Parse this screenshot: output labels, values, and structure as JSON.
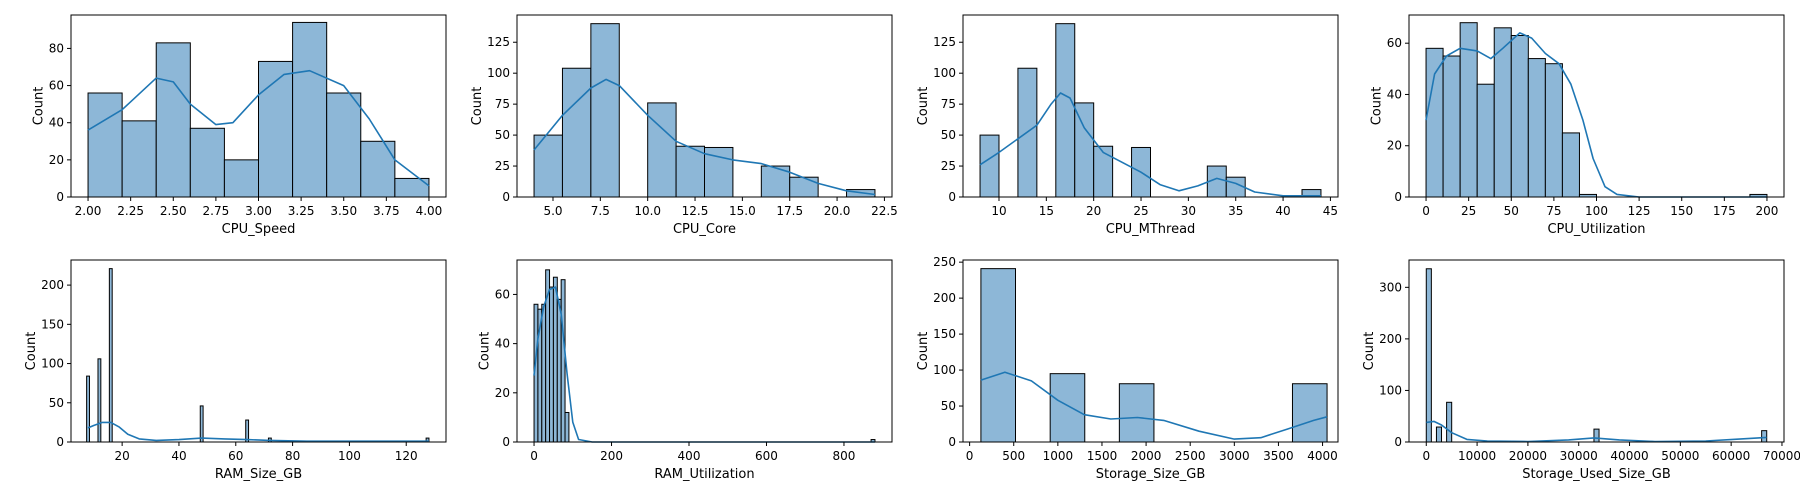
{
  "style": {
    "bar_fill": "#8db7d7",
    "bar_edge": "#000000",
    "kde_color": "#1f77b4"
  },
  "chart_data": [
    {
      "type": "bar",
      "xlabel": "CPU_Speed",
      "ylabel": "Count",
      "xlim": [
        1.9,
        4.1
      ],
      "ylim": [
        0,
        98
      ],
      "xticks": [
        "2.00",
        "2.25",
        "2.50",
        "2.75",
        "3.00",
        "3.25",
        "3.50",
        "3.75",
        "4.00"
      ],
      "yticks": [
        "0",
        "20",
        "40",
        "60",
        "80"
      ],
      "bins": [
        {
          "x0": 2.0,
          "x1": 2.2,
          "count": 56
        },
        {
          "x0": 2.2,
          "x1": 2.4,
          "count": 41
        },
        {
          "x0": 2.4,
          "x1": 2.6,
          "count": 83
        },
        {
          "x0": 2.6,
          "x1": 2.8,
          "count": 37
        },
        {
          "x0": 2.8,
          "x1": 3.0,
          "count": 20
        },
        {
          "x0": 3.0,
          "x1": 3.2,
          "count": 73
        },
        {
          "x0": 3.2,
          "x1": 3.4,
          "count": 94
        },
        {
          "x0": 3.4,
          "x1": 3.6,
          "count": 56
        },
        {
          "x0": 3.6,
          "x1": 3.8,
          "count": 30
        },
        {
          "x0": 3.8,
          "x1": 4.0,
          "count": 10
        }
      ],
      "kde": [
        [
          2.0,
          36
        ],
        [
          2.2,
          47
        ],
        [
          2.4,
          64
        ],
        [
          2.5,
          62
        ],
        [
          2.6,
          50
        ],
        [
          2.75,
          39
        ],
        [
          2.85,
          40
        ],
        [
          3.0,
          55
        ],
        [
          3.15,
          66
        ],
        [
          3.3,
          68
        ],
        [
          3.5,
          60
        ],
        [
          3.65,
          42
        ],
        [
          3.8,
          20
        ],
        [
          4.0,
          6
        ]
      ]
    },
    {
      "type": "bar",
      "xlabel": "CPU_Core",
      "ylabel": "Count",
      "xlim": [
        3.1,
        22.9
      ],
      "ylim": [
        0,
        147
      ],
      "xticks": [
        "5.0",
        "7.5",
        "10.0",
        "12.5",
        "15.0",
        "17.5",
        "20.0",
        "22.5"
      ],
      "yticks": [
        "0",
        "25",
        "50",
        "75",
        "100",
        "125"
      ],
      "bins": [
        {
          "x0": 4.0,
          "x1": 5.5,
          "count": 50
        },
        {
          "x0": 5.5,
          "x1": 7.0,
          "count": 104
        },
        {
          "x0": 7.0,
          "x1": 8.5,
          "count": 140
        },
        {
          "x0": 8.5,
          "x1": 10.0,
          "count": 0
        },
        {
          "x0": 10.0,
          "x1": 11.5,
          "count": 76
        },
        {
          "x0": 11.5,
          "x1": 13.0,
          "count": 41
        },
        {
          "x0": 13.0,
          "x1": 14.5,
          "count": 40
        },
        {
          "x0": 14.5,
          "x1": 16.0,
          "count": 0
        },
        {
          "x0": 16.0,
          "x1": 17.5,
          "count": 25
        },
        {
          "x0": 17.5,
          "x1": 19.0,
          "count": 16
        },
        {
          "x0": 19.0,
          "x1": 20.5,
          "count": 0
        },
        {
          "x0": 20.5,
          "x1": 22.0,
          "count": 6
        }
      ],
      "kde": [
        [
          4.0,
          38
        ],
        [
          5.5,
          66
        ],
        [
          7.0,
          88
        ],
        [
          7.8,
          95
        ],
        [
          8.5,
          90
        ],
        [
          10.0,
          66
        ],
        [
          11.5,
          45
        ],
        [
          13.0,
          35
        ],
        [
          14.5,
          30
        ],
        [
          16.0,
          27
        ],
        [
          17.5,
          20
        ],
        [
          19.0,
          11
        ],
        [
          20.5,
          5
        ],
        [
          22.0,
          2
        ]
      ]
    },
    {
      "type": "bar",
      "xlabel": "CPU_MThread",
      "ylabel": "Count",
      "xlim": [
        6.2,
        45.8
      ],
      "ylim": [
        0,
        147
      ],
      "xticks": [
        "10",
        "15",
        "20",
        "25",
        "30",
        "35",
        "40",
        "45"
      ],
      "yticks": [
        "0",
        "25",
        "50",
        "75",
        "100",
        "125"
      ],
      "bins": [
        {
          "x0": 8,
          "x1": 10,
          "count": 50
        },
        {
          "x0": 10,
          "x1": 12,
          "count": 0
        },
        {
          "x0": 12,
          "x1": 14,
          "count": 104
        },
        {
          "x0": 14,
          "x1": 16,
          "count": 0
        },
        {
          "x0": 16,
          "x1": 18,
          "count": 140
        },
        {
          "x0": 18,
          "x1": 20,
          "count": 76
        },
        {
          "x0": 20,
          "x1": 22,
          "count": 41
        },
        {
          "x0": 22,
          "x1": 24,
          "count": 0
        },
        {
          "x0": 24,
          "x1": 26,
          "count": 40
        },
        {
          "x0": 26,
          "x1": 28,
          "count": 0
        },
        {
          "x0": 28,
          "x1": 30,
          "count": 0
        },
        {
          "x0": 30,
          "x1": 32,
          "count": 0
        },
        {
          "x0": 32,
          "x1": 34,
          "count": 25
        },
        {
          "x0": 34,
          "x1": 36,
          "count": 16
        },
        {
          "x0": 36,
          "x1": 38,
          "count": 0
        },
        {
          "x0": 38,
          "x1": 40,
          "count": 0
        },
        {
          "x0": 40,
          "x1": 42,
          "count": 0
        },
        {
          "x0": 42,
          "x1": 44,
          "count": 6
        }
      ],
      "kde": [
        [
          8,
          26
        ],
        [
          10,
          36
        ],
        [
          12,
          47
        ],
        [
          14,
          58
        ],
        [
          15.5,
          75
        ],
        [
          16.5,
          84
        ],
        [
          17.5,
          80
        ],
        [
          19,
          56
        ],
        [
          21,
          36
        ],
        [
          23,
          28
        ],
        [
          25,
          20
        ],
        [
          27,
          10
        ],
        [
          29,
          5
        ],
        [
          31,
          9
        ],
        [
          33,
          15
        ],
        [
          35,
          11
        ],
        [
          37,
          4
        ],
        [
          40,
          1
        ],
        [
          44,
          1
        ]
      ]
    },
    {
      "type": "bar",
      "xlabel": "CPU_Utilization",
      "ylabel": "Count",
      "xlim": [
        -10,
        210
      ],
      "ylim": [
        0,
        71
      ],
      "xticks": [
        "0",
        "25",
        "50",
        "75",
        "100",
        "125",
        "150",
        "175",
        "200"
      ],
      "yticks": [
        "0",
        "20",
        "40",
        "60"
      ],
      "bins": [
        {
          "x0": 0,
          "x1": 10,
          "count": 58
        },
        {
          "x0": 10,
          "x1": 20,
          "count": 55
        },
        {
          "x0": 20,
          "x1": 30,
          "count": 68
        },
        {
          "x0": 30,
          "x1": 40,
          "count": 44
        },
        {
          "x0": 40,
          "x1": 50,
          "count": 66
        },
        {
          "x0": 50,
          "x1": 60,
          "count": 63
        },
        {
          "x0": 60,
          "x1": 70,
          "count": 54
        },
        {
          "x0": 70,
          "x1": 80,
          "count": 52
        },
        {
          "x0": 80,
          "x1": 90,
          "count": 25
        },
        {
          "x0": 90,
          "x1": 100,
          "count": 1
        },
        {
          "x0": 190,
          "x1": 200,
          "count": 1
        }
      ],
      "kde": [
        [
          0,
          30
        ],
        [
          5,
          48
        ],
        [
          12,
          55
        ],
        [
          20,
          58
        ],
        [
          30,
          57
        ],
        [
          38,
          54
        ],
        [
          45,
          58
        ],
        [
          55,
          64
        ],
        [
          62,
          62
        ],
        [
          70,
          56
        ],
        [
          78,
          52
        ],
        [
          85,
          44
        ],
        [
          92,
          30
        ],
        [
          98,
          15
        ],
        [
          105,
          4
        ],
        [
          112,
          1
        ],
        [
          125,
          0
        ],
        [
          200,
          0
        ]
      ]
    },
    {
      "type": "bar",
      "xlabel": "RAM_Size_GB",
      "ylabel": "Count",
      "xlim": [
        2,
        134
      ],
      "ylim": [
        0,
        232
      ],
      "xticks": [
        "20",
        "40",
        "60",
        "80",
        "100",
        "120"
      ],
      "yticks": [
        "0",
        "50",
        "100",
        "150",
        "200"
      ],
      "bins": [
        {
          "x0": 7.5,
          "x1": 8.5,
          "count": 84
        },
        {
          "x0": 11.5,
          "x1": 12.5,
          "count": 106
        },
        {
          "x0": 15.5,
          "x1": 16.5,
          "count": 221
        },
        {
          "x0": 47.5,
          "x1": 48.5,
          "count": 46
        },
        {
          "x0": 63.5,
          "x1": 64.5,
          "count": 28
        },
        {
          "x0": 71.5,
          "x1": 72.5,
          "count": 5
        },
        {
          "x0": 127.0,
          "x1": 128.0,
          "count": 5
        }
      ],
      "kde": [
        [
          8,
          18
        ],
        [
          10,
          21
        ],
        [
          13,
          25
        ],
        [
          16,
          25
        ],
        [
          19,
          19
        ],
        [
          22,
          10
        ],
        [
          26,
          4
        ],
        [
          32,
          2
        ],
        [
          40,
          3
        ],
        [
          48,
          5
        ],
        [
          56,
          4
        ],
        [
          64,
          3
        ],
        [
          72,
          2
        ],
        [
          85,
          1
        ],
        [
          100,
          1
        ],
        [
          115,
          1
        ],
        [
          128,
          1
        ]
      ]
    },
    {
      "type": "bar",
      "xlabel": "RAM_Utilization",
      "ylabel": "Count",
      "xlim": [
        -44,
        924
      ],
      "ylim": [
        0,
        74
      ],
      "xticks": [
        "0",
        "200",
        "400",
        "600",
        "800"
      ],
      "yticks": [
        "0",
        "20",
        "40",
        "60"
      ],
      "bins": [
        {
          "x0": 0,
          "x1": 10,
          "count": 56
        },
        {
          "x0": 10,
          "x1": 20,
          "count": 54
        },
        {
          "x0": 20,
          "x1": 30,
          "count": 56
        },
        {
          "x0": 30,
          "x1": 40,
          "count": 70
        },
        {
          "x0": 40,
          "x1": 50,
          "count": 63
        },
        {
          "x0": 50,
          "x1": 60,
          "count": 67
        },
        {
          "x0": 60,
          "x1": 70,
          "count": 58
        },
        {
          "x0": 70,
          "x1": 80,
          "count": 66
        },
        {
          "x0": 80,
          "x1": 90,
          "count": 12
        },
        {
          "x0": 870,
          "x1": 880,
          "count": 1
        }
      ],
      "kde": [
        [
          0,
          27
        ],
        [
          10,
          42
        ],
        [
          25,
          55
        ],
        [
          40,
          62
        ],
        [
          55,
          63
        ],
        [
          70,
          52
        ],
        [
          85,
          28
        ],
        [
          100,
          8
        ],
        [
          115,
          1
        ],
        [
          150,
          0
        ],
        [
          880,
          0
        ]
      ]
    },
    {
      "type": "bar",
      "xlabel": "Storage_Size_GB",
      "ylabel": "Count",
      "xlim": [
        -75,
        4175
      ],
      "ylim": [
        0,
        253
      ],
      "xticks": [
        "0",
        "500",
        "1000",
        "1500",
        "2000",
        "2500",
        "3000",
        "3500",
        "4000"
      ],
      "yticks": [
        "0",
        "50",
        "100",
        "150",
        "200",
        "250"
      ],
      "bins": [
        {
          "x0": 128,
          "x1": 520,
          "count": 241
        },
        {
          "x0": 520,
          "x1": 913,
          "count": 0
        },
        {
          "x0": 913,
          "x1": 1305,
          "count": 95
        },
        {
          "x0": 1305,
          "x1": 1697,
          "count": 0
        },
        {
          "x0": 1697,
          "x1": 2089,
          "count": 81
        },
        {
          "x0": 2089,
          "x1": 2482,
          "count": 0
        },
        {
          "x0": 2482,
          "x1": 2874,
          "count": 0
        },
        {
          "x0": 2874,
          "x1": 3266,
          "count": 0
        },
        {
          "x0": 3266,
          "x1": 3659,
          "count": 0
        },
        {
          "x0": 3659,
          "x1": 4051,
          "count": 81
        }
      ],
      "kde": [
        [
          128,
          86
        ],
        [
          400,
          97
        ],
        [
          700,
          85
        ],
        [
          1000,
          58
        ],
        [
          1300,
          38
        ],
        [
          1600,
          32
        ],
        [
          1900,
          34
        ],
        [
          2200,
          30
        ],
        [
          2600,
          15
        ],
        [
          3000,
          4
        ],
        [
          3300,
          6
        ],
        [
          3600,
          18
        ],
        [
          3900,
          30
        ],
        [
          4050,
          35
        ]
      ]
    },
    {
      "type": "bar",
      "xlabel": "Storage_Used_Size_GB",
      "ylabel": "Count",
      "xlim": [
        -3400,
        70400
      ],
      "ylim": [
        0,
        353
      ],
      "xticks": [
        "0",
        "10000",
        "20000",
        "30000",
        "40000",
        "50000",
        "60000",
        "70000"
      ],
      "yticks": [
        "0",
        "100",
        "200",
        "300"
      ],
      "bins": [
        {
          "x0": 0,
          "x1": 1000,
          "count": 336
        },
        {
          "x0": 2000,
          "x1": 3000,
          "count": 29
        },
        {
          "x0": 4000,
          "x1": 5000,
          "count": 77
        },
        {
          "x0": 33000,
          "x1": 34000,
          "count": 25
        },
        {
          "x0": 66000,
          "x1": 67000,
          "count": 22
        }
      ],
      "kde": [
        [
          0,
          38
        ],
        [
          1500,
          40
        ],
        [
          3000,
          33
        ],
        [
          5000,
          18
        ],
        [
          8000,
          5
        ],
        [
          12000,
          2
        ],
        [
          20000,
          1
        ],
        [
          28000,
          4
        ],
        [
          33000,
          8
        ],
        [
          38000,
          4
        ],
        [
          45000,
          1
        ],
        [
          55000,
          2
        ],
        [
          62000,
          6
        ],
        [
          67000,
          9
        ]
      ]
    }
  ]
}
